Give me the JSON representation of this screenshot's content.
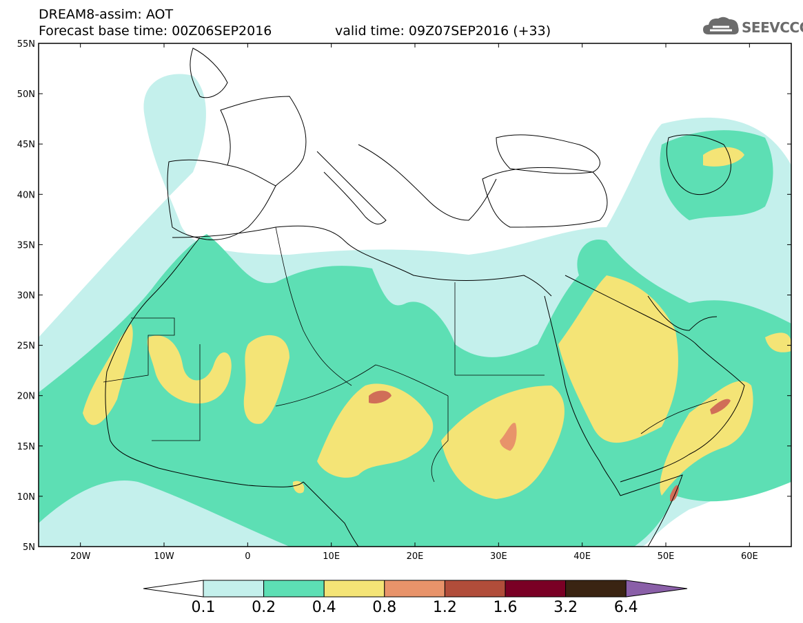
{
  "header": {
    "line1": "DREAM8-assim: AOT",
    "base_time": "Forecast base time: 00Z06SEP2016",
    "valid_time": "valid time: 09Z07SEP2016 (+33)"
  },
  "logo": {
    "text": "SEEVCCC",
    "icon": "cloud-icon"
  },
  "map": {
    "lon_range": [
      -25,
      65
    ],
    "lat_range": [
      5,
      55
    ],
    "lat_ticks": [
      {
        "value": 55,
        "label": "55N"
      },
      {
        "value": 50,
        "label": "50N"
      },
      {
        "value": 45,
        "label": "45N"
      },
      {
        "value": 40,
        "label": "40N"
      },
      {
        "value": 35,
        "label": "35N"
      },
      {
        "value": 30,
        "label": "30N"
      },
      {
        "value": 25,
        "label": "25N"
      },
      {
        "value": 20,
        "label": "20N"
      },
      {
        "value": 15,
        "label": "15N"
      },
      {
        "value": 10,
        "label": "10N"
      },
      {
        "value": 5,
        "label": "5N"
      }
    ],
    "lon_ticks": [
      {
        "value": -20,
        "label": "20W"
      },
      {
        "value": -10,
        "label": "10W"
      },
      {
        "value": 0,
        "label": "0"
      },
      {
        "value": 10,
        "label": "10E"
      },
      {
        "value": 20,
        "label": "20E"
      },
      {
        "value": 30,
        "label": "30E"
      },
      {
        "value": 40,
        "label": "40E"
      },
      {
        "value": 50,
        "label": "50E"
      },
      {
        "value": 60,
        "label": "60E"
      }
    ]
  },
  "colorbar": {
    "labels": [
      "0.1",
      "0.2",
      "0.4",
      "0.8",
      "1.2",
      "1.6",
      "3.2",
      "6.4"
    ],
    "colors": [
      "#ffffff",
      "#c4f0ec",
      "#5ddfb4",
      "#f4e476",
      "#e8936a",
      "#b14d3a",
      "#7a0025",
      "#3a2412",
      "#8a5fa8"
    ]
  },
  "colors": {
    "c1": "#c4f0ec",
    "c2": "#5ddfb4",
    "c3": "#f4e476",
    "c4": "#e8936a",
    "c5": "#d06e58"
  }
}
